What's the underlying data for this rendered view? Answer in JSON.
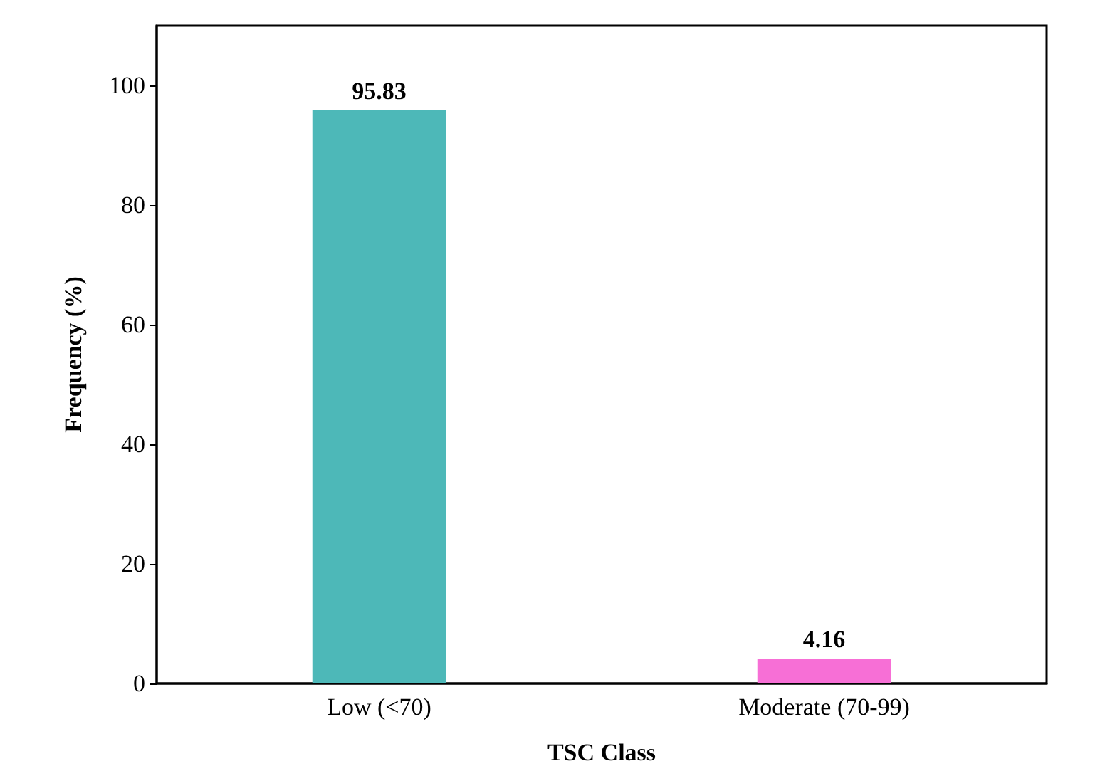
{
  "chart_data": {
    "type": "bar",
    "xlabel": "TSC Class",
    "ylabel": "Frequency (%)",
    "categories": [
      "Low (<70)",
      "Moderate (70-99)"
    ],
    "values": [
      95.83,
      4.16
    ],
    "colors": [
      "#4db8b8",
      "#f76fd6"
    ],
    "ylim": [
      0,
      110
    ],
    "yticks": [
      0,
      20,
      40,
      60,
      80,
      100
    ],
    "grid": false,
    "data_labels": true
  }
}
